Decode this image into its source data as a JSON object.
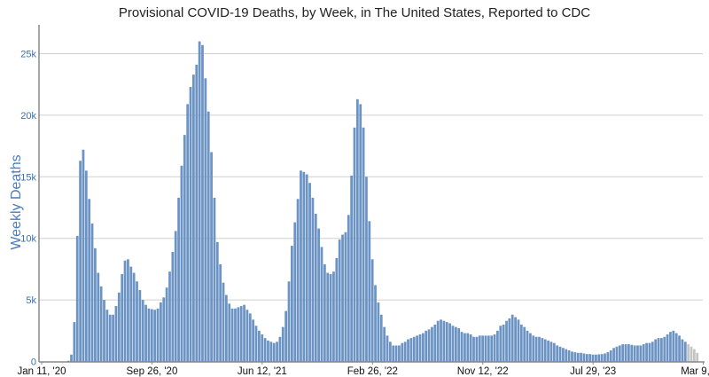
{
  "chart_data": {
    "type": "bar",
    "title": "Provisional COVID-19 Deaths, by Week, in The United States, Reported to CDC",
    "xlabel": "",
    "ylabel": "Weekly Deaths",
    "ylim": [
      0,
      27500
    ],
    "grid": true,
    "yticks": [
      {
        "value": 0,
        "label": "0"
      },
      {
        "value": 5000,
        "label": "5k"
      },
      {
        "value": 10000,
        "label": "10k"
      },
      {
        "value": 15000,
        "label": "15k"
      },
      {
        "value": 20000,
        "label": "20k"
      },
      {
        "value": 25000,
        "label": "25k"
      }
    ],
    "xticks": [
      {
        "week_index": 0,
        "label": "Jan 11, '20"
      },
      {
        "week_index": 37,
        "label": "Sep 26, '20"
      },
      {
        "week_index": 74,
        "label": "Jun 12, '21"
      },
      {
        "week_index": 111,
        "label": "Feb 26, '22"
      },
      {
        "week_index": 148,
        "label": "Nov 12, '22"
      },
      {
        "week_index": 185,
        "label": "Jul 29, '23"
      },
      {
        "week_index": 222,
        "label": "Mar 9, '24"
      }
    ],
    "x_start": "Jan 11, '20",
    "x_interval": "1 week",
    "provisional_last_n": 4,
    "colors": {
      "bar": "#6b93c3",
      "provisional": "#c4c4c4",
      "axis_label": "#4a7cc0"
    },
    "values": [
      0,
      0,
      0,
      0,
      0,
      0,
      0,
      0,
      0,
      60,
      560,
      3200,
      10200,
      16300,
      17200,
      15500,
      13200,
      11200,
      9200,
      7200,
      6100,
      5000,
      4200,
      3800,
      3800,
      4500,
      5600,
      7100,
      8200,
      8300,
      7700,
      7200,
      6500,
      5800,
      5000,
      4600,
      4300,
      4250,
      4200,
      4300,
      4800,
      5200,
      6000,
      7300,
      8900,
      10600,
      13300,
      15900,
      18400,
      20900,
      22300,
      23300,
      24100,
      26000,
      25700,
      23000,
      20300,
      17000,
      13300,
      9700,
      7900,
      6400,
      5400,
      4700,
      4300,
      4300,
      4400,
      4500,
      4600,
      4200,
      3900,
      3400,
      2900,
      2500,
      2200,
      1900,
      1700,
      1600,
      1500,
      1600,
      2000,
      2800,
      4100,
      6500,
      9400,
      11300,
      13200,
      15500,
      15400,
      15200,
      14500,
      13300,
      12000,
      10800,
      9300,
      7900,
      7200,
      7100,
      7300,
      8400,
      9900,
      10300,
      10500,
      11900,
      15100,
      19000,
      21300,
      20900,
      19000,
      15000,
      11400,
      8300,
      6200,
      4800,
      3800,
      2800,
      2100,
      1600,
      1300,
      1300,
      1300,
      1500,
      1600,
      1800,
      1900,
      2000,
      2100,
      2200,
      2300,
      2500,
      2600,
      2800,
      3000,
      3300,
      3400,
      3300,
      3200,
      3100,
      2900,
      2800,
      2700,
      2400,
      2300,
      2300,
      2200,
      2000,
      2000,
      2100,
      2100,
      2100,
      2100,
      2100,
      2200,
      2500,
      2900,
      3000,
      3300,
      3500,
      3800,
      3600,
      3400,
      3000,
      2800,
      2500,
      2300,
      2100,
      2000,
      2000,
      1900,
      1800,
      1700,
      1600,
      1500,
      1300,
      1200,
      1100,
      1000,
      900,
      800,
      750,
      700,
      700,
      650,
      600,
      600,
      560,
      560,
      580,
      600,
      650,
      750,
      900,
      1100,
      1200,
      1300,
      1400,
      1400,
      1400,
      1350,
      1300,
      1300,
      1300,
      1400,
      1500,
      1500,
      1600,
      1800,
      1900,
      1900,
      2000,
      2200,
      2400,
      2500,
      2300,
      2100,
      1800,
      1600,
      1400,
      1200,
      1000,
      700
    ]
  }
}
